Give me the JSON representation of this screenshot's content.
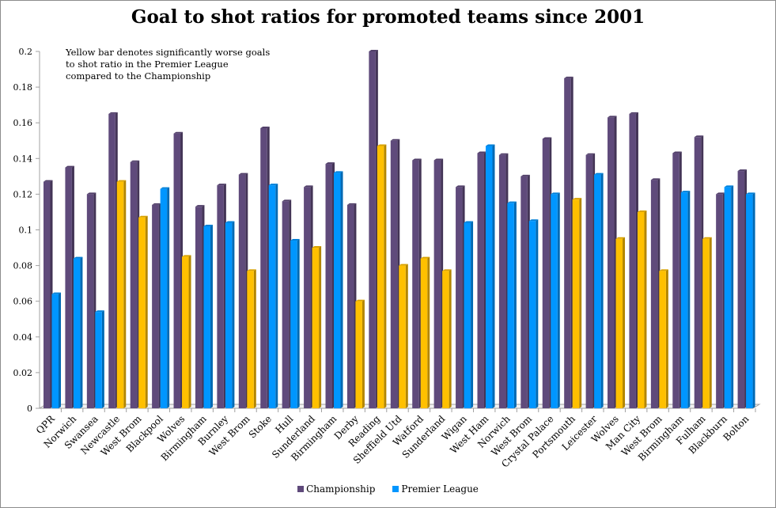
{
  "chart_data": {
    "type": "bar",
    "title": "Goal to shot ratios for promoted teams since 2001",
    "annotation": "Yellow bar denotes significantly worse goals to shot ratio in the Premier League compared to the Championship",
    "xlabel": "",
    "ylabel": "",
    "ylim": [
      0,
      0.2
    ],
    "yticks": [
      "0",
      "0.02",
      "0.04",
      "0.06",
      "0.08",
      "0.1",
      "0.12",
      "0.14",
      "0.16",
      "0.18",
      "0.2"
    ],
    "grid": false,
    "legend_position": "bottom",
    "categories": [
      "QPR",
      "Norwich",
      "Swansea",
      "Newcastle",
      "West Brom",
      "Blackpool",
      "Wolves",
      "Birmingham",
      "Burnley",
      "West Brom",
      "Stoke",
      "Hull",
      "Sunderland",
      "Birmingham",
      "Derby",
      "Reading",
      "Sheffield Utd",
      "Watford",
      "Sunderland",
      "Wigan",
      "West Ham",
      "Norwich",
      "West Brom",
      "Crystal Palace",
      "Portsmouth",
      "Leicester",
      "Wolves",
      "Man City",
      "West Brom",
      "Birmingham",
      "Fulham",
      "Blackburn",
      "Bolton"
    ],
    "series": [
      {
        "name": "Championship",
        "color": "#5f4a7b",
        "values": [
          0.127,
          0.135,
          0.12,
          0.165,
          0.138,
          0.114,
          0.154,
          0.113,
          0.125,
          0.131,
          0.157,
          0.116,
          0.124,
          0.137,
          0.114,
          0.2,
          0.15,
          0.139,
          0.139,
          0.124,
          0.143,
          0.142,
          0.13,
          0.151,
          0.185,
          0.142,
          0.163,
          0.165,
          0.128,
          0.143,
          0.152,
          0.12,
          0.133
        ]
      },
      {
        "name": "Premier League",
        "color": "#0096ff",
        "values": [
          0.064,
          0.084,
          0.054,
          0.127,
          0.107,
          0.123,
          0.085,
          0.102,
          0.104,
          0.077,
          0.125,
          0.094,
          0.09,
          0.132,
          0.06,
          0.147,
          0.08,
          0.084,
          0.077,
          0.104,
          0.147,
          0.115,
          0.105,
          0.12,
          0.117,
          0.131,
          0.095,
          0.11,
          0.077,
          0.121,
          0.095,
          0.124,
          0.12
        ],
        "highlighted": [
          false,
          false,
          false,
          true,
          true,
          false,
          true,
          false,
          false,
          true,
          false,
          false,
          true,
          false,
          true,
          true,
          true,
          true,
          true,
          false,
          false,
          false,
          false,
          false,
          true,
          false,
          true,
          true,
          true,
          false,
          true,
          false,
          false
        ]
      }
    ],
    "highlight_color": "#ffc000"
  }
}
